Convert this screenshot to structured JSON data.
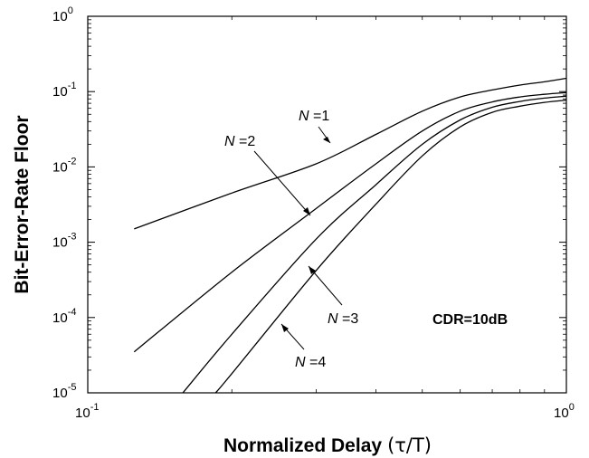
{
  "chart_data": {
    "type": "line",
    "title": "",
    "xlabel": {
      "main": "Normalized Delay",
      "unit": "(τ/T)"
    },
    "ylabel": "Bit-Error-Rate Floor",
    "x_scale": "log",
    "y_scale": "log",
    "xlim": [
      0.1,
      1
    ],
    "ylim": [
      1e-05,
      1
    ],
    "grid": false,
    "x_ticks": [
      {
        "value": 0.1,
        "base": "10",
        "exp": "-1"
      },
      {
        "value": 1,
        "base": "10",
        "exp": "0"
      }
    ],
    "y_ticks": [
      {
        "value": 1,
        "base": "10",
        "exp": "0"
      },
      {
        "value": 0.1,
        "base": "10",
        "exp": "-1"
      },
      {
        "value": 0.01,
        "base": "10",
        "exp": "-2"
      },
      {
        "value": 0.001,
        "base": "10",
        "exp": "-3"
      },
      {
        "value": 0.0001,
        "base": "10",
        "exp": "-4"
      },
      {
        "value": 1e-05,
        "base": "10",
        "exp": "-5"
      }
    ],
    "annotation": "CDR=10dB",
    "series": [
      {
        "name": "N =1",
        "label_var": "N",
        "label_rest": " =1",
        "x": [
          0.125,
          0.2,
          0.3,
          0.4,
          0.5,
          0.6,
          0.7,
          0.8,
          0.9,
          1.0
        ],
        "y": [
          0.0015,
          0.0045,
          0.011,
          0.027,
          0.055,
          0.085,
          0.105,
          0.122,
          0.135,
          0.15
        ]
      },
      {
        "name": "N =2",
        "label_var": "N",
        "label_rest": " =2",
        "x": [
          0.125,
          0.2,
          0.3,
          0.4,
          0.5,
          0.6,
          0.7,
          0.8,
          0.9,
          1.0
        ],
        "y": [
          3.5e-05,
          0.0004,
          0.0028,
          0.011,
          0.03,
          0.055,
          0.073,
          0.085,
          0.092,
          0.097
        ]
      },
      {
        "name": "N =3",
        "label_var": "N",
        "label_rest": " =3",
        "x": [
          0.158,
          0.2,
          0.3,
          0.4,
          0.5,
          0.6,
          0.7,
          0.8,
          0.9,
          1.0
        ],
        "y": [
          1e-05,
          6e-05,
          0.0011,
          0.0058,
          0.02,
          0.042,
          0.062,
          0.074,
          0.082,
          0.087
        ]
      },
      {
        "name": "N =4",
        "label_var": "N",
        "label_rest": " =4",
        "x": [
          0.185,
          0.2,
          0.3,
          0.4,
          0.5,
          0.6,
          0.7,
          0.8,
          0.9,
          1.0
        ],
        "y": [
          1e-05,
          1.8e-05,
          0.00042,
          0.0032,
          0.014,
          0.034,
          0.053,
          0.064,
          0.072,
          0.077
        ]
      }
    ],
    "colors": {
      "line": "#000000",
      "axes": "#000000",
      "background": "#ffffff"
    }
  }
}
